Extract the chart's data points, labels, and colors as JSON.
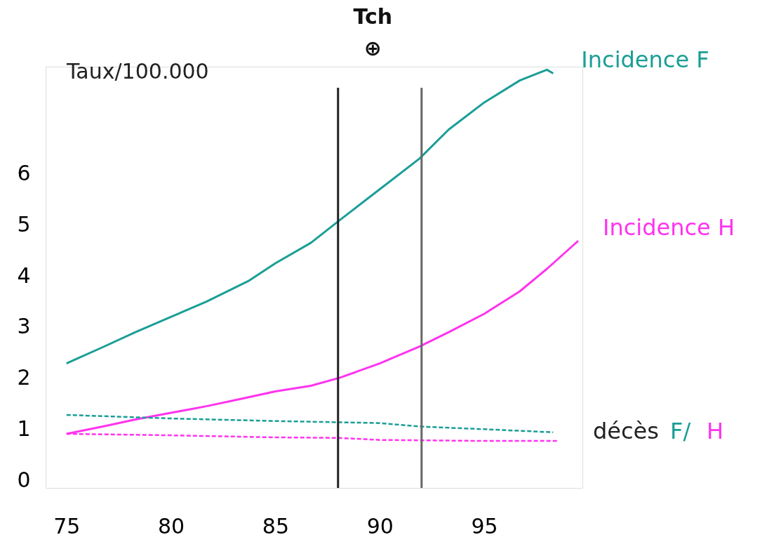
{
  "chart_data": {
    "type": "line",
    "ylabel": "Taux/100.000",
    "xlim": [
      74,
      99.7
    ],
    "ylim": [
      -0.15,
      8.1
    ],
    "xticks": [
      75,
      80,
      85,
      90,
      95
    ],
    "yticks": [
      0,
      1,
      2,
      3,
      4,
      5,
      6
    ],
    "grid": false,
    "marker": "none",
    "annotations": [
      "Tch",
      "⊕",
      "décès"
    ],
    "ref_lines": [
      {
        "axis": "x",
        "value": 88,
        "color": "#222222"
      },
      {
        "axis": "x",
        "value": 92,
        "color": "#666666"
      }
    ],
    "series": [
      {
        "name": "Incidence F",
        "color": "#1a9e96",
        "line_style": "solid",
        "x": [
          75,
          76.7,
          78.3,
          80,
          81.7,
          83.7,
          85,
          86.7,
          88.1,
          90,
          91.9,
          93.3,
          95,
          96.7,
          98,
          98.3
        ],
        "values": [
          2.29,
          2.6,
          2.9,
          3.2,
          3.5,
          3.9,
          4.25,
          4.65,
          5.1,
          5.7,
          6.3,
          6.87,
          7.4,
          7.83,
          8.04,
          7.97
        ]
      },
      {
        "name": "Incidence H",
        "color": "#ff33ee",
        "line_style": "solid",
        "x": [
          75,
          76.7,
          78.3,
          80,
          81.7,
          83.3,
          85,
          86.7,
          88.1,
          90,
          91.9,
          93.3,
          95,
          96.7,
          98,
          99.5
        ],
        "values": [
          0.91,
          1.05,
          1.19,
          1.32,
          1.45,
          1.59,
          1.74,
          1.85,
          2.01,
          2.29,
          2.62,
          2.9,
          3.26,
          3.7,
          4.14,
          4.69
        ]
      },
      {
        "name": "F/",
        "color": "#1a9e96",
        "line_style": "dashed",
        "x": [
          75,
          80,
          85,
          90,
          92,
          95,
          98.3
        ],
        "values": [
          1.28,
          1.21,
          1.16,
          1.12,
          1.05,
          1.0,
          0.94
        ]
      },
      {
        "name": "H",
        "color": "#ff33ee",
        "line_style": "dashed",
        "x": [
          75,
          80,
          85,
          88,
          90,
          95,
          98.5
        ],
        "values": [
          0.91,
          0.88,
          0.84,
          0.83,
          0.79,
          0.77,
          0.77
        ]
      }
    ]
  }
}
